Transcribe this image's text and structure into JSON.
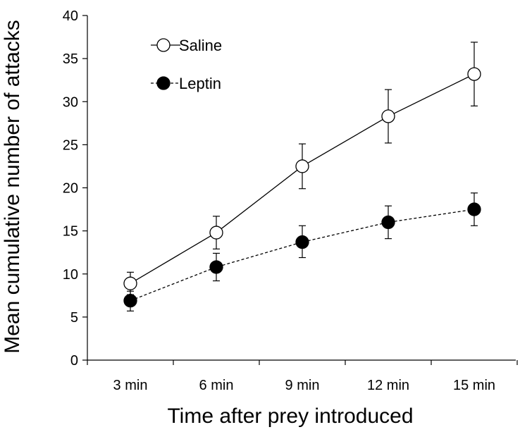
{
  "chart_data": {
    "type": "line",
    "categories": [
      "3 min",
      "6 min",
      "9 min",
      "12 min",
      "15 min"
    ],
    "xlabel": "Time after prey introduced",
    "ylabel": "Mean cumulative number of attacks",
    "ylim": [
      0,
      40
    ],
    "yticks": [
      "0",
      "5",
      "10",
      "15",
      "20",
      "25",
      "30",
      "35",
      "40"
    ],
    "grid": false,
    "legend_position": "top-left",
    "series": [
      {
        "name": "Saline",
        "marker": "open-circle",
        "line_style": "solid",
        "values": [
          8.9,
          14.8,
          22.5,
          28.3,
          33.2
        ],
        "err_low": [
          7.6,
          12.9,
          19.9,
          25.2,
          29.5
        ],
        "err_high": [
          10.2,
          16.7,
          25.1,
          31.4,
          36.9
        ]
      },
      {
        "name": "Leptin",
        "marker": "filled-circle",
        "line_style": "dashed",
        "values": [
          6.9,
          10.8,
          13.7,
          16.0,
          17.5
        ],
        "err_low": [
          5.7,
          9.2,
          11.9,
          14.1,
          15.6
        ],
        "err_high": [
          8.0,
          12.4,
          15.6,
          17.9,
          19.4
        ]
      }
    ]
  }
}
